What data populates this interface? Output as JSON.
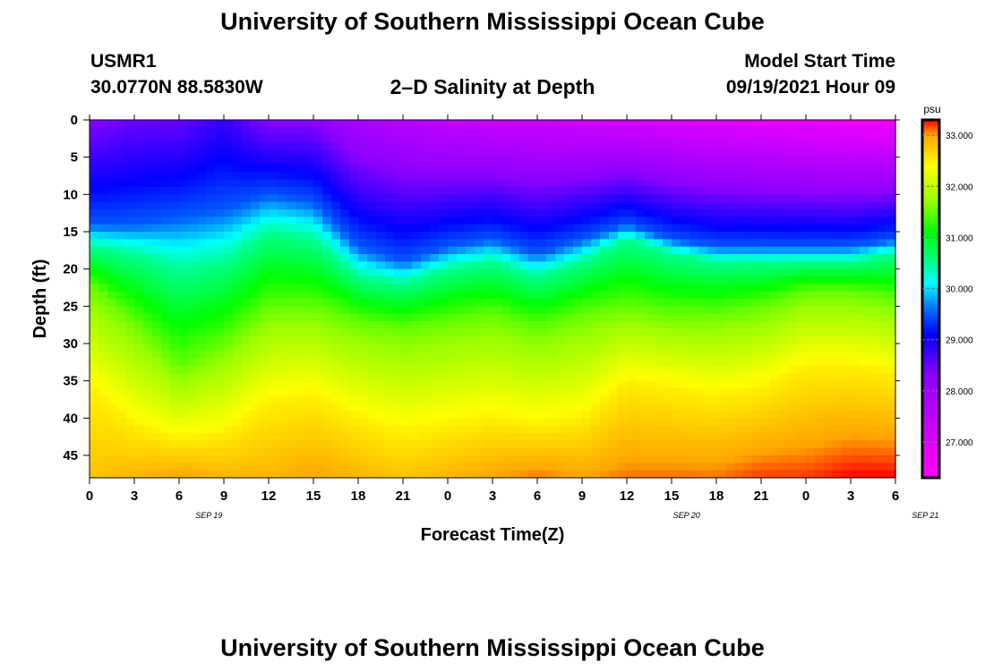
{
  "header": {
    "title": "University of Southern Mississippi Ocean Cube",
    "station_id": "USMR1",
    "station_coords": "30.0770N  88.5830W",
    "plot_title": "2–D Salinity at Depth",
    "model_start_label": "Model Start Time",
    "model_start_value": "09/19/2021 Hour 09"
  },
  "footer": {
    "title": "University of Southern Mississippi Ocean Cube"
  },
  "chart_data": {
    "type": "heatmap",
    "title": "2–D Salinity at Depth",
    "xlabel": "Forecast Time(Z)",
    "ylabel": "Depth (ft)",
    "x_tick_labels": [
      "0",
      "3",
      "6",
      "9",
      "12",
      "15",
      "18",
      "21",
      "0",
      "3",
      "6",
      "9",
      "12",
      "15",
      "18",
      "21",
      "0",
      "3",
      "6"
    ],
    "date_labels": [
      {
        "label": "SEP 19",
        "forecast_hour": 12
      },
      {
        "label": "SEP 20",
        "forecast_hour": 60
      },
      {
        "label": "SEP 21",
        "forecast_hour": 84
      }
    ],
    "xlim_hours": [
      0,
      54
    ],
    "y_ticks": [
      0,
      5,
      10,
      15,
      20,
      25,
      30,
      35,
      40,
      45
    ],
    "ylim": [
      0,
      48
    ],
    "colorbar": {
      "unit": "psu",
      "range": [
        26.3,
        33.3
      ],
      "tick_labels": [
        "27.000",
        "28.000",
        "29.000",
        "30.000",
        "31.000",
        "32.000",
        "33.000"
      ],
      "tick_values": [
        27,
        28,
        29,
        30,
        31,
        32,
        33
      ]
    },
    "isohaline_depths_ft": {
      "hours": [
        0,
        3,
        6,
        9,
        12,
        15,
        18,
        21,
        24,
        27,
        30,
        33,
        36,
        39,
        42,
        45,
        48,
        51,
        54
      ],
      "s29_5": [
        14,
        14,
        13,
        12,
        10,
        11,
        17,
        19,
        17,
        16,
        18,
        16,
        14,
        16,
        17,
        17,
        17,
        17,
        16
      ],
      "s30_5": [
        17,
        18,
        20,
        19,
        15,
        16,
        21,
        22,
        20,
        19,
        21,
        19,
        16,
        18,
        19,
        19,
        19,
        19,
        18
      ],
      "s31_5": [
        22,
        27,
        33,
        30,
        25,
        25,
        27,
        28,
        27,
        26,
        28,
        26,
        25,
        26,
        26,
        25,
        23,
        23,
        24
      ],
      "s32_5": [
        36,
        41,
        43,
        42,
        38,
        37,
        40,
        42,
        41,
        40,
        41,
        40,
        35,
        36,
        37,
        36,
        33,
        33,
        34
      ],
      "surface_salinity": [
        28.3,
        28.5,
        28.5,
        28.8,
        28.3,
        28.3,
        27.8,
        27.6,
        27.4,
        27.3,
        27.3,
        27.2,
        27.1,
        27.0,
        26.9,
        26.8,
        26.7,
        26.6,
        26.5
      ],
      "bottom_salinity": [
        32.8,
        32.9,
        33.0,
        32.9,
        32.9,
        33.0,
        32.9,
        32.8,
        32.9,
        33.0,
        33.1,
        33.0,
        33.1,
        33.1,
        33.1,
        33.2,
        33.2,
        33.3,
        33.3
      ]
    }
  }
}
